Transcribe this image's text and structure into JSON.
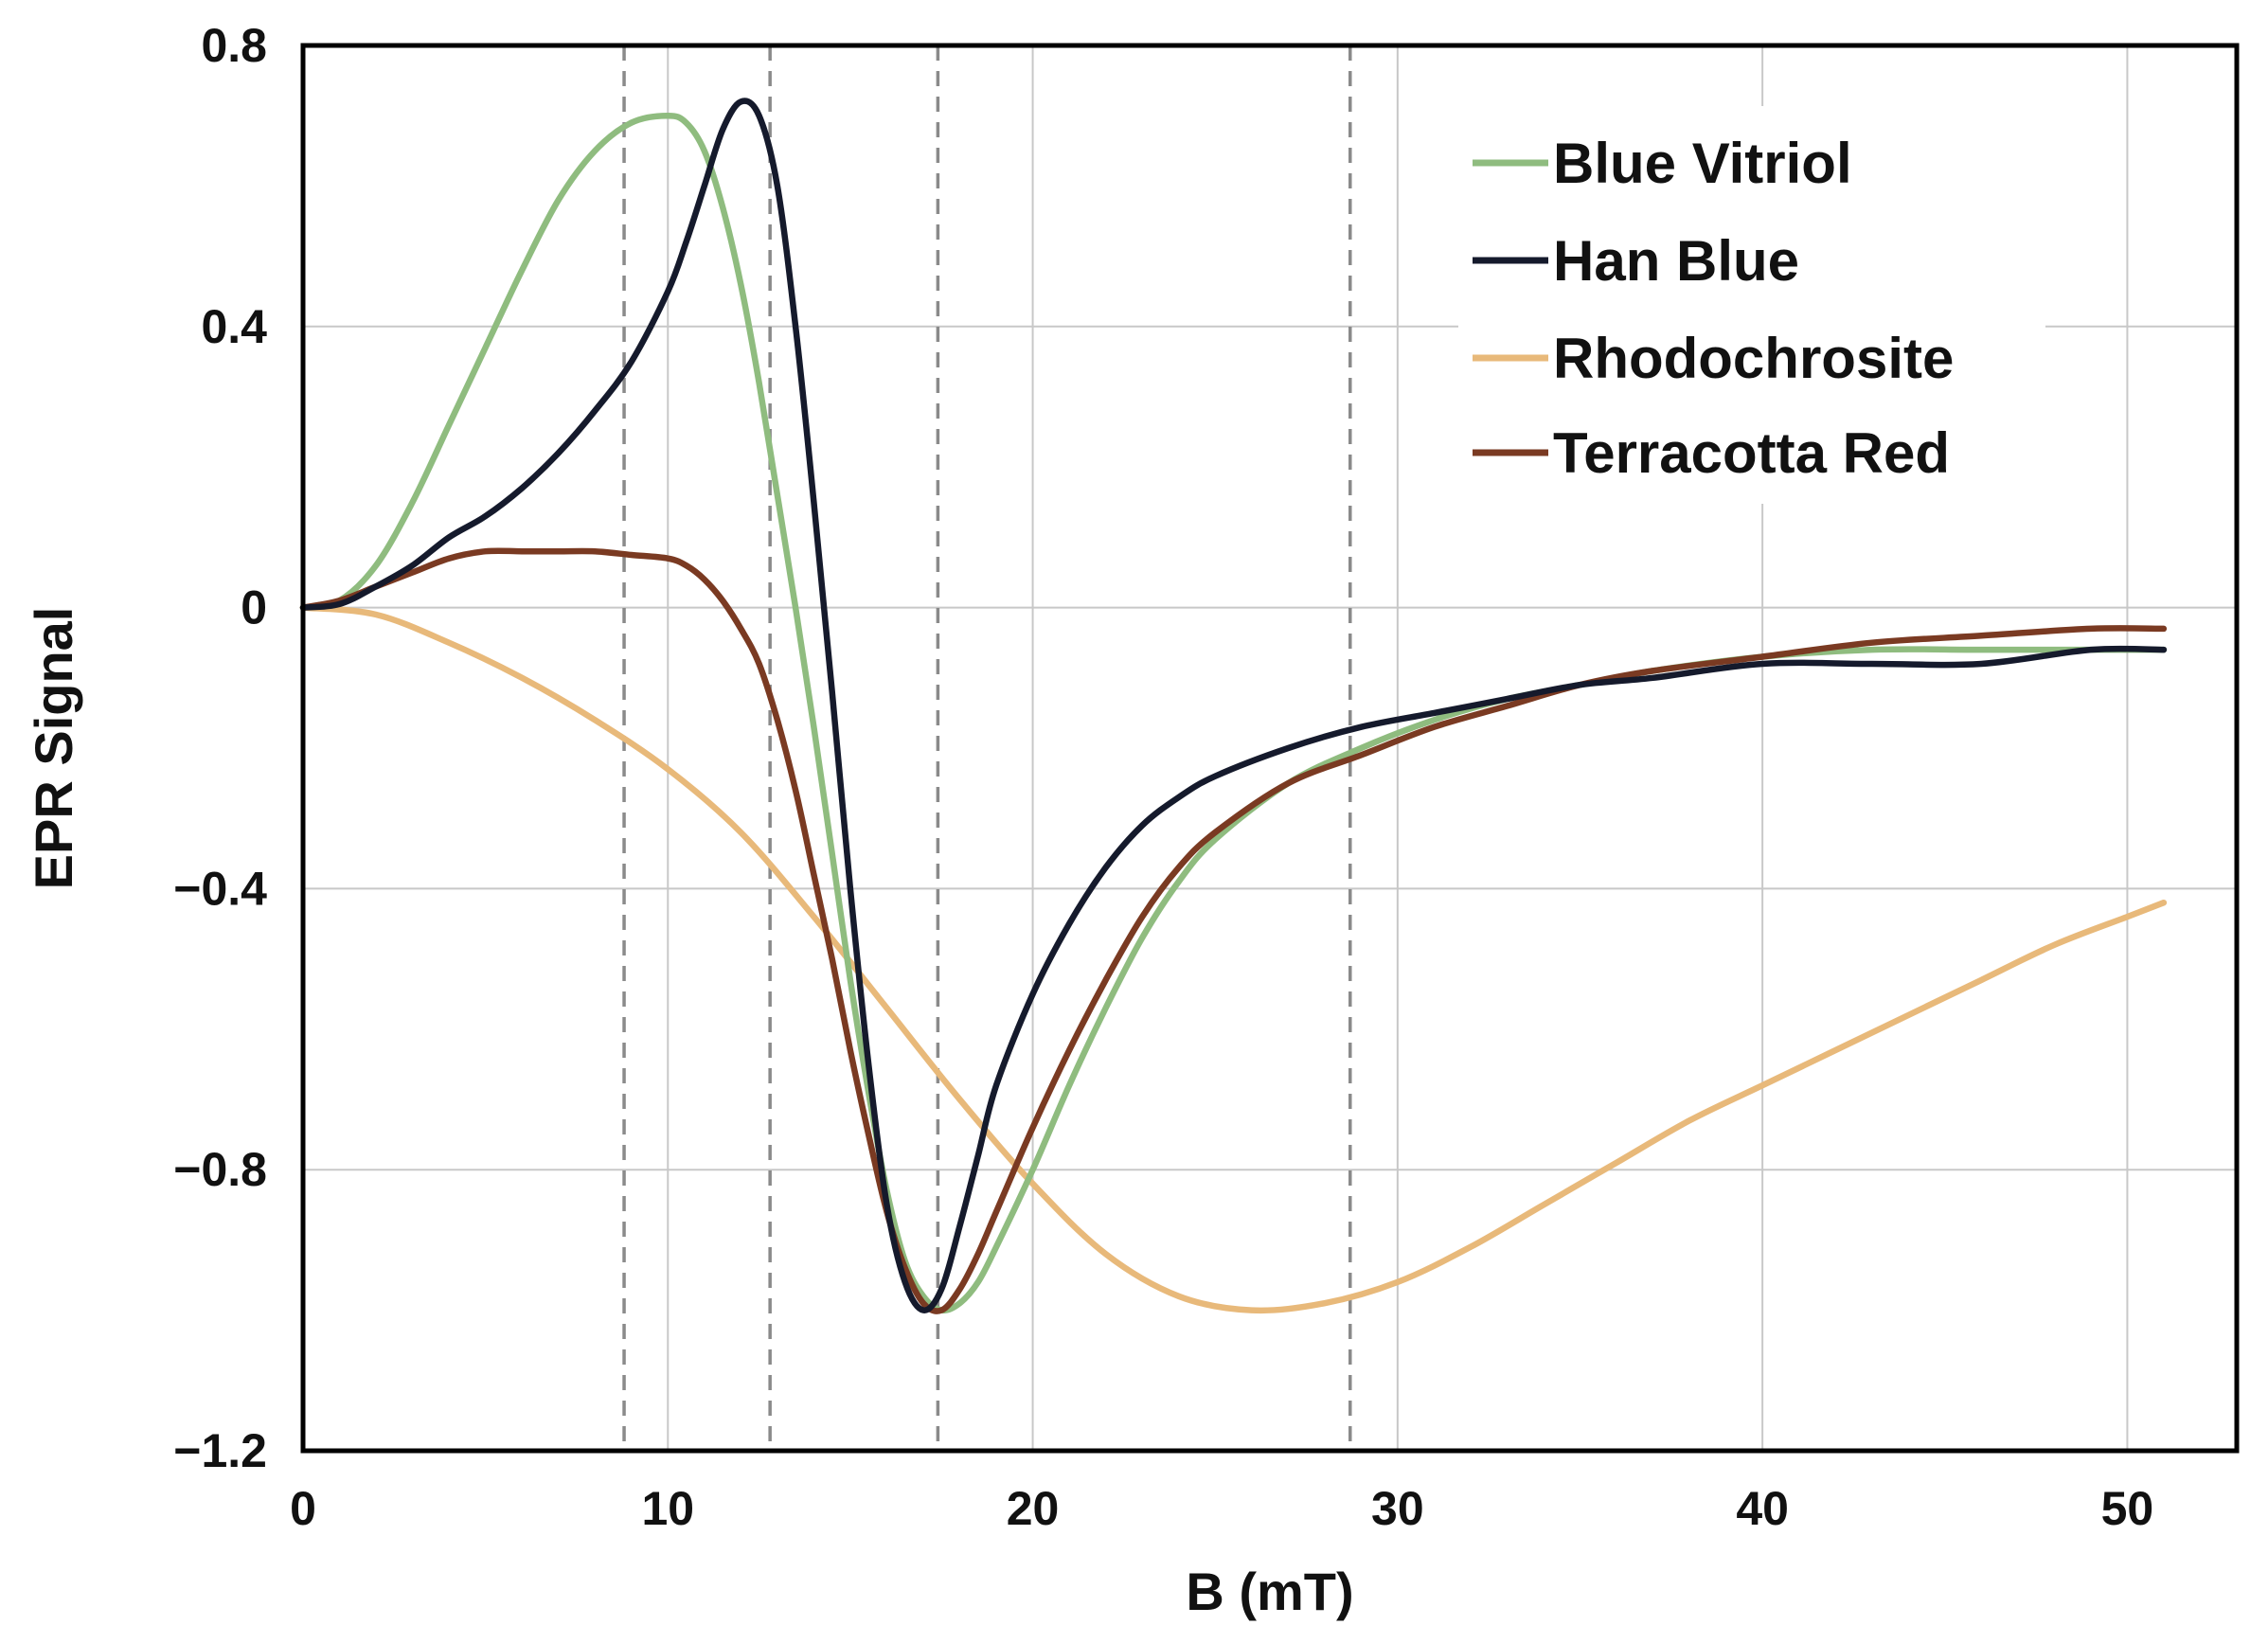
{
  "chart_data": {
    "type": "line",
    "title": "",
    "xlabel": "B (mT)",
    "ylabel": "EPR Signal",
    "xlim": [
      0,
      53
    ],
    "ylim": [
      -1.2,
      0.8
    ],
    "xticks": [
      0,
      10,
      20,
      30,
      40,
      50
    ],
    "yticks": [
      0.8,
      0.4,
      0,
      -0.4,
      -0.8,
      -1.2
    ],
    "xtick_labels": [
      "0",
      "10",
      "20",
      "30",
      "40",
      "50"
    ],
    "ytick_labels": [
      "0.8",
      "0.4",
      "0",
      "−0.4",
      "−0.8",
      "−1.2"
    ],
    "grid": true,
    "legend_position": "top-right",
    "reference_lines_x": [
      8.8,
      12.8,
      17.4,
      28.7
    ],
    "series": [
      {
        "name": "Blue Vitriol",
        "color": "#8fbc7f",
        "x": [
          0,
          1,
          2,
          3,
          4,
          5,
          6,
          7,
          8,
          9,
          10,
          10.5,
          11,
          11.5,
          12,
          12.5,
          13,
          13.5,
          14,
          14.5,
          15,
          15.5,
          16,
          16.5,
          17,
          17.5,
          18,
          18.5,
          19,
          20,
          21,
          22,
          23,
          24,
          25,
          27,
          29,
          31,
          33,
          35,
          37,
          40,
          43,
          46,
          49,
          51
        ],
        "y": [
          0,
          0.01,
          0.06,
          0.15,
          0.26,
          0.37,
          0.48,
          0.58,
          0.65,
          0.69,
          0.7,
          0.69,
          0.65,
          0.57,
          0.46,
          0.32,
          0.16,
          0.0,
          -0.17,
          -0.35,
          -0.53,
          -0.69,
          -0.83,
          -0.93,
          -0.98,
          -1.0,
          -0.99,
          -0.96,
          -0.91,
          -0.8,
          -0.68,
          -0.57,
          -0.47,
          -0.39,
          -0.33,
          -0.25,
          -0.2,
          -0.16,
          -0.13,
          -0.11,
          -0.09,
          -0.07,
          -0.06,
          -0.06,
          -0.06,
          -0.06
        ]
      },
      {
        "name": "Han Blue",
        "color": "#151a2c",
        "x": [
          0,
          1,
          2,
          3,
          4,
          5,
          6,
          7,
          8,
          9,
          10,
          10.5,
          11,
          11.5,
          12,
          12.5,
          13,
          13.5,
          14,
          14.5,
          15,
          15.5,
          16,
          16.5,
          17,
          17.5,
          18,
          18.5,
          19,
          20,
          21,
          22,
          23,
          24,
          25,
          27,
          29,
          31,
          33,
          35,
          37,
          40,
          43,
          46,
          49,
          51
        ],
        "y": [
          0,
          0.005,
          0.03,
          0.06,
          0.1,
          0.13,
          0.17,
          0.22,
          0.28,
          0.35,
          0.45,
          0.52,
          0.6,
          0.68,
          0.72,
          0.7,
          0.6,
          0.4,
          0.15,
          -0.12,
          -0.4,
          -0.65,
          -0.85,
          -0.96,
          -1.0,
          -0.97,
          -0.88,
          -0.78,
          -0.68,
          -0.55,
          -0.45,
          -0.37,
          -0.31,
          -0.27,
          -0.24,
          -0.2,
          -0.17,
          -0.15,
          -0.13,
          -0.11,
          -0.1,
          -0.08,
          -0.08,
          -0.08,
          -0.06,
          -0.06
        ]
      },
      {
        "name": "Rhodochrosite",
        "color": "#e8b97a",
        "x": [
          0,
          2,
          4,
          6,
          8,
          10,
          12,
          14,
          16,
          18,
          20,
          22,
          24,
          26,
          28,
          30,
          32,
          34,
          36,
          38,
          40,
          42,
          44,
          46,
          48,
          50,
          51
        ],
        "y": [
          0,
          -0.01,
          -0.05,
          -0.1,
          -0.16,
          -0.23,
          -0.32,
          -0.44,
          -0.57,
          -0.7,
          -0.82,
          -0.92,
          -0.98,
          -1.0,
          -0.99,
          -0.96,
          -0.91,
          -0.85,
          -0.79,
          -0.73,
          -0.68,
          -0.63,
          -0.58,
          -0.53,
          -0.48,
          -0.44,
          -0.42
        ]
      },
      {
        "name": "Terracotta Red",
        "color": "#7a3a22",
        "x": [
          0,
          1,
          2,
          3,
          4,
          5,
          6,
          7,
          8,
          9,
          10,
          10.5,
          11,
          11.5,
          12,
          12.5,
          13,
          13.5,
          14,
          14.5,
          15,
          15.5,
          16,
          16.5,
          17,
          17.5,
          18,
          18.5,
          19,
          20,
          21,
          22,
          23,
          24,
          25,
          27,
          29,
          31,
          33,
          35,
          37,
          40,
          43,
          46,
          49,
          51
        ],
        "y": [
          0,
          0.01,
          0.03,
          0.05,
          0.07,
          0.08,
          0.08,
          0.08,
          0.08,
          0.075,
          0.07,
          0.06,
          0.04,
          0.01,
          -0.03,
          -0.08,
          -0.16,
          -0.26,
          -0.38,
          -0.5,
          -0.63,
          -0.75,
          -0.86,
          -0.94,
          -0.99,
          -1.0,
          -0.97,
          -0.92,
          -0.86,
          -0.74,
          -0.63,
          -0.53,
          -0.44,
          -0.37,
          -0.32,
          -0.25,
          -0.21,
          -0.17,
          -0.14,
          -0.11,
          -0.09,
          -0.07,
          -0.05,
          -0.04,
          -0.03,
          -0.03
        ]
      }
    ]
  }
}
